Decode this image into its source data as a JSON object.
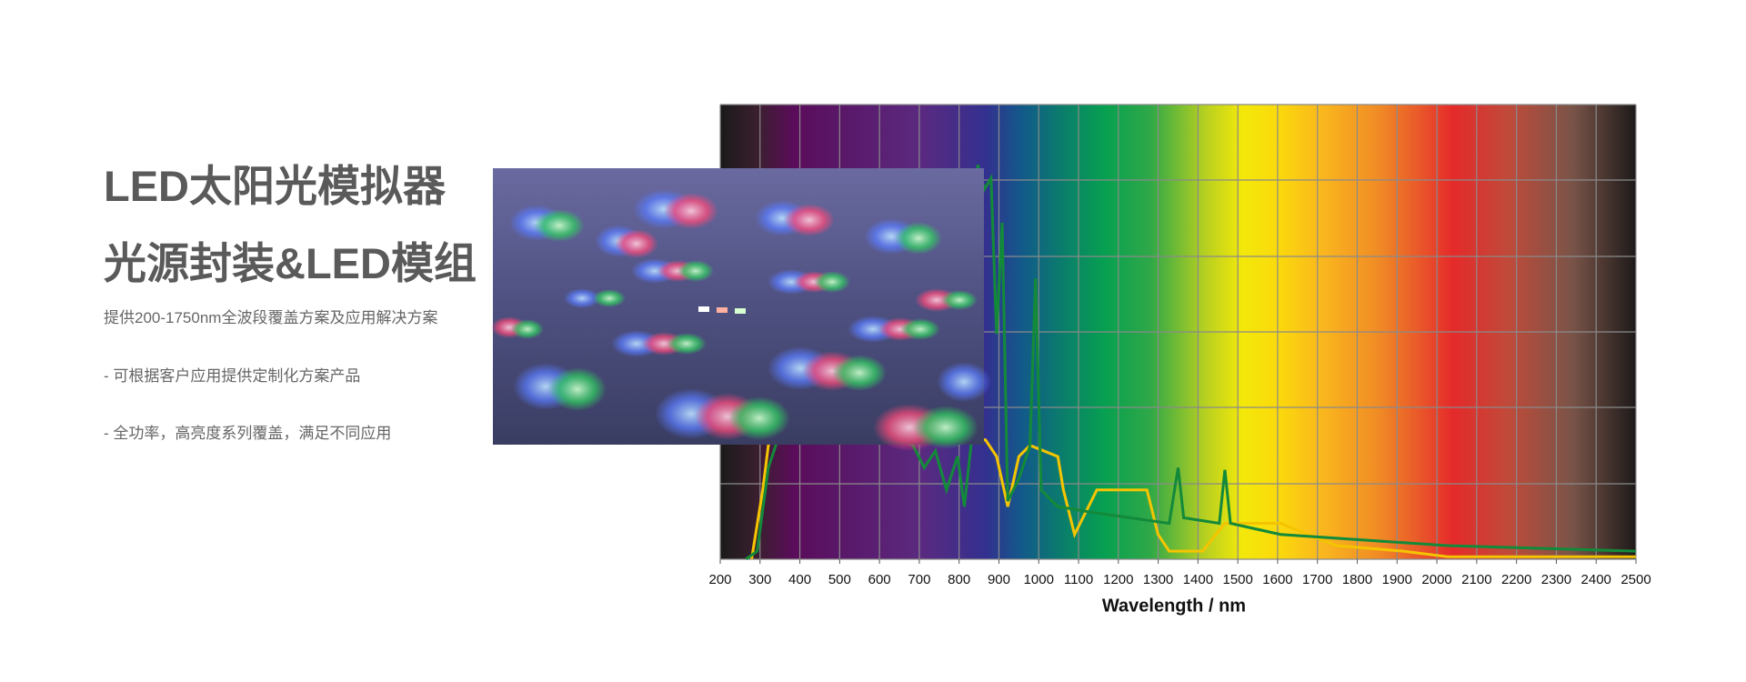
{
  "heading": {
    "line1": "LED太阳光模拟器",
    "line2": "光源封装&LED模组"
  },
  "description": "提供200-1750nm全波段覆盖方案及应用解决方案",
  "features": [
    "- 可根据客户应用提供定制化方案产品",
    "- 全功率，高亮度系列覆盖，满足不同应用"
  ],
  "spectrum": {
    "xlim": [
      200,
      2500
    ],
    "xticks": [
      200,
      300,
      400,
      500,
      600,
      700,
      800,
      900,
      1000,
      1100,
      1200,
      1300,
      1400,
      1500,
      1600,
      1700,
      1800,
      1900,
      2000,
      2100,
      2200,
      2300,
      2400,
      2500
    ],
    "x_label": "Wavelength / nm"
  }
}
